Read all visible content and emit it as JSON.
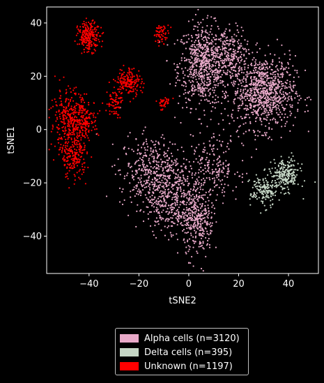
{
  "chart_data": {
    "type": "scatter",
    "xlabel": "tSNE2",
    "ylabel": "tSNE1",
    "xlim": [
      -57,
      52
    ],
    "ylim": [
      -54,
      46
    ],
    "x_ticks": [
      -40,
      -20,
      0,
      20,
      40
    ],
    "y_ticks": [
      40,
      20,
      0,
      -20,
      -40
    ],
    "x_tick_labels": [
      "−40",
      "−20",
      "0",
      "20",
      "40"
    ],
    "y_tick_labels": [
      "40",
      "20",
      "0",
      "−20",
      "−40"
    ],
    "grid": false,
    "legend_position": "below",
    "background": "#000000",
    "series": [
      {
        "name": "Alpha cells (n=3120)",
        "color": "#e8a9c8",
        "count": 3120,
        "clusters": [
          {
            "cx": 6,
            "cy": 24,
            "sx": 6,
            "sy": 9,
            "n": 700
          },
          {
            "cx": 17,
            "cy": 28,
            "sx": 3.5,
            "sy": 6,
            "n": 200
          },
          {
            "cx": 30,
            "cy": 14,
            "sx": 7.5,
            "sy": 8,
            "n": 900
          },
          {
            "cx": -14,
            "cy": -16,
            "sx": 8,
            "sy": 8,
            "n": 480
          },
          {
            "cx": -5,
            "cy": -28,
            "sx": 7,
            "sy": 7,
            "n": 380
          },
          {
            "cx": 4,
            "cy": -36,
            "sx": 3.5,
            "sy": 7,
            "n": 250
          },
          {
            "cx": 10,
            "cy": -14,
            "sx": 6,
            "sy": 7,
            "n": 210
          }
        ]
      },
      {
        "name": "Delta cells (n=395)",
        "color": "#c5d6c5",
        "count": 395,
        "clusters": [
          {
            "cx": 39,
            "cy": -17,
            "sx": 3.2,
            "sy": 3.5,
            "n": 230
          },
          {
            "cx": 30,
            "cy": -23,
            "sx": 3.2,
            "sy": 3.5,
            "n": 165
          }
        ]
      },
      {
        "name": "Unknown (n=1197)",
        "color": "#ff0000",
        "count": 1197,
        "clusters": [
          {
            "cx": -40,
            "cy": 35,
            "sx": 2.6,
            "sy": 3.2,
            "n": 220
          },
          {
            "cx": -11,
            "cy": 36,
            "sx": 1.8,
            "sy": 2,
            "n": 60
          },
          {
            "cx": -24,
            "cy": 18,
            "sx": 3,
            "sy": 3,
            "n": 170
          },
          {
            "cx": -30,
            "cy": 10,
            "sx": 1.8,
            "sy": 3,
            "n": 70
          },
          {
            "cx": -10,
            "cy": 10,
            "sx": 1.8,
            "sy": 1.5,
            "n": 35
          },
          {
            "cx": -48,
            "cy": 3,
            "sx": 4.5,
            "sy": 7,
            "n": 300
          },
          {
            "cx": -42,
            "cy": 4,
            "sx": 3.5,
            "sy": 4,
            "n": 150
          },
          {
            "cx": -46,
            "cy": -10,
            "sx": 3,
            "sy": 5,
            "n": 192
          }
        ]
      }
    ]
  },
  "legend": {
    "items": [
      {
        "label": "Alpha cells (n=3120)",
        "color": "#e8a9c8"
      },
      {
        "label": "Delta cells (n=395)",
        "color": "#c5d6c5"
      },
      {
        "label": "Unknown (n=1197)",
        "color": "#ff0000"
      }
    ]
  }
}
